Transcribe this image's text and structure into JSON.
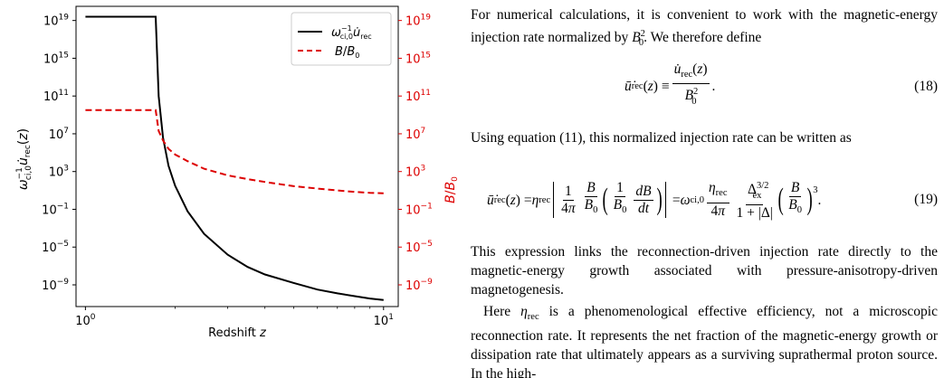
{
  "chart_data": {
    "type": "line",
    "xlabel": "Redshift z",
    "x_scale": "log",
    "xlim": [
      0.93,
      11.2
    ],
    "x_ticks": [
      "10^0",
      "10^1"
    ],
    "y_left_label": "ω_ci,0^-1 u̇_rec(z)",
    "y_left_scale": "log",
    "y_left_ticks": [
      "10^19",
      "10^15",
      "10^11",
      "10^7",
      "10^3",
      "10^-1",
      "10^-5",
      "10^-9"
    ],
    "y_right_label": "B/B0",
    "y_right_scale": "log",
    "y_right_ticks": [
      "10^19",
      "10^15",
      "10^11",
      "10^7",
      "10^3",
      "10^-1",
      "10^-5",
      "10^-9"
    ],
    "ylim_log10": [
      -11.3,
      20.5
    ],
    "legend_position": "upper right",
    "series": [
      {
        "name": "ω_ci,0^-1 u̇_rec",
        "axis": "left",
        "color": "#000000",
        "style": "solid",
        "x": [
          1.0,
          1.65,
          1.72,
          1.76,
          1.82,
          1.9,
          2.0,
          2.2,
          2.5,
          3.0,
          3.5,
          4.0,
          5.0,
          6.0,
          7.0,
          8.0,
          9.0,
          10.0
        ],
        "log10_y": [
          19.4,
          19.4,
          19.4,
          11.0,
          6.6,
          3.6,
          1.5,
          -1.2,
          -3.6,
          -5.8,
          -7.1,
          -7.9,
          -8.8,
          -9.5,
          -9.9,
          -10.2,
          -10.45,
          -10.6
        ]
      },
      {
        "name": "B/B0",
        "axis": "right",
        "color": "#dd0000",
        "style": "dashed",
        "x": [
          1.0,
          1.65,
          1.72,
          1.76,
          1.82,
          1.9,
          2.0,
          2.2,
          2.5,
          3.0,
          3.5,
          4.0,
          5.0,
          6.0,
          7.0,
          8.0,
          9.0,
          10.0
        ],
        "log10_y": [
          9.5,
          9.5,
          9.5,
          7.3,
          6.3,
          5.4,
          4.8,
          4.1,
          3.3,
          2.6,
          2.2,
          1.9,
          1.45,
          1.2,
          1.0,
          0.85,
          0.75,
          0.7
        ]
      }
    ]
  },
  "text": {
    "para1": "For numerical calculations, it is convenient to work with the magnetic-energy injection rate normalized by B0². We therefore define",
    "eq18": {
      "lhs": "u̇rec(z) ≡",
      "numerator": "u̇rec(z)",
      "denominator": "B0²",
      "number": "(18)"
    },
    "para2": "Using equation (11), this normalized injection rate can be written as",
    "eq19": {
      "lhs": "u̇rec(z) = ηrec",
      "f1_num": "1",
      "f1_den": "4π",
      "f2_num": "B",
      "f2_den": "B0",
      "f3_num": "1",
      "f3_den": "B0",
      "f4_num": "dB",
      "f4_den": "dt",
      "mid": "= ωci,0",
      "f5_num": "ηrec",
      "f5_den": "4π",
      "f6_num": "Δex^3/2",
      "f6_den": "1 + |Δ|",
      "f7_num": "B",
      "f7_den": "B0",
      "exponent": "3",
      "number": "(19)"
    },
    "para3": "This expression links the reconnection-driven injection rate directly to the magnetic-energy growth associated with pressure-anisotropy-driven magnetogenesis.",
    "para4": "Here ηrec is a phenomenological effective efficiency, not a microscopic reconnection rate. It represents the net fraction of the magnetic-energy growth or dissipation rate that ultimately appears as a surviving suprathermal proton source. In the high-"
  }
}
